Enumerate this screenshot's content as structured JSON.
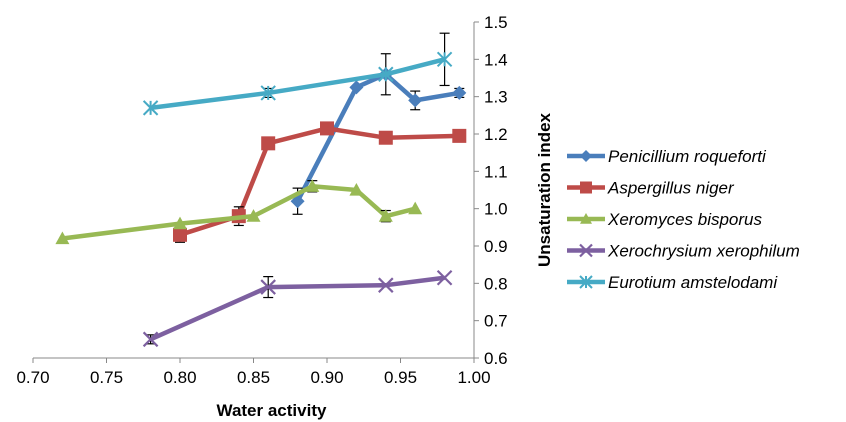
{
  "chart_data": {
    "type": "line",
    "title": "",
    "xlabel": "Water activity",
    "ylabel": "Unsaturation index",
    "xlim": [
      0.7,
      1.0
    ],
    "ylim": [
      0.6,
      1.5
    ],
    "xticks": [
      "0.70",
      "0.75",
      "0.80",
      "0.85",
      "0.90",
      "0.95",
      "1.00"
    ],
    "yticks": [
      "0.6",
      "0.7",
      "0.8",
      "0.9",
      "1.0",
      "1.1",
      "1.2",
      "1.3",
      "1.4",
      "1.5"
    ],
    "grid": false,
    "legend_position": "right",
    "series": [
      {
        "name": "Penicillium roqueforti",
        "color": "#4a7ebb",
        "marker": "diamond",
        "x": [
          0.88,
          0.92,
          0.94,
          0.96,
          0.99
        ],
        "y": [
          1.02,
          1.325,
          1.36,
          1.29,
          1.31
        ],
        "err": [
          0.035,
          0.0,
          0.0,
          0.025,
          0.012
        ]
      },
      {
        "name": "Aspergillus niger",
        "color": "#be4b48",
        "marker": "square",
        "x": [
          0.8,
          0.84,
          0.86,
          0.9,
          0.94,
          0.99
        ],
        "y": [
          0.93,
          0.98,
          1.175,
          1.215,
          1.19,
          1.195
        ],
        "err": [
          0.02,
          0.025,
          0.0,
          0.0,
          0.0,
          0.015
        ]
      },
      {
        "name": "Xeromyces bisporus",
        "color": "#98b954",
        "marker": "triangle",
        "x": [
          0.72,
          0.8,
          0.85,
          0.89,
          0.92,
          0.94,
          0.96
        ],
        "y": [
          0.92,
          0.96,
          0.98,
          1.06,
          1.05,
          0.98,
          1.0
        ],
        "err": [
          0.0,
          0.0,
          0.0,
          0.015,
          0.0,
          0.015,
          0.0
        ]
      },
      {
        "name": "Xerochrysium xerophilum",
        "color": "#7d60a0",
        "marker": "x",
        "x": [
          0.78,
          0.86,
          0.94,
          0.98
        ],
        "y": [
          0.65,
          0.79,
          0.795,
          0.815
        ],
        "err": [
          0.012,
          0.028,
          0.0,
          0.0
        ]
      },
      {
        "name": "Eurotium amstelodami",
        "color": "#46aac5",
        "marker": "star",
        "x": [
          0.78,
          0.86,
          0.94,
          0.98
        ],
        "y": [
          1.27,
          1.31,
          1.36,
          1.4
        ],
        "err": [
          0.0,
          0.012,
          0.055,
          0.07
        ]
      }
    ]
  }
}
